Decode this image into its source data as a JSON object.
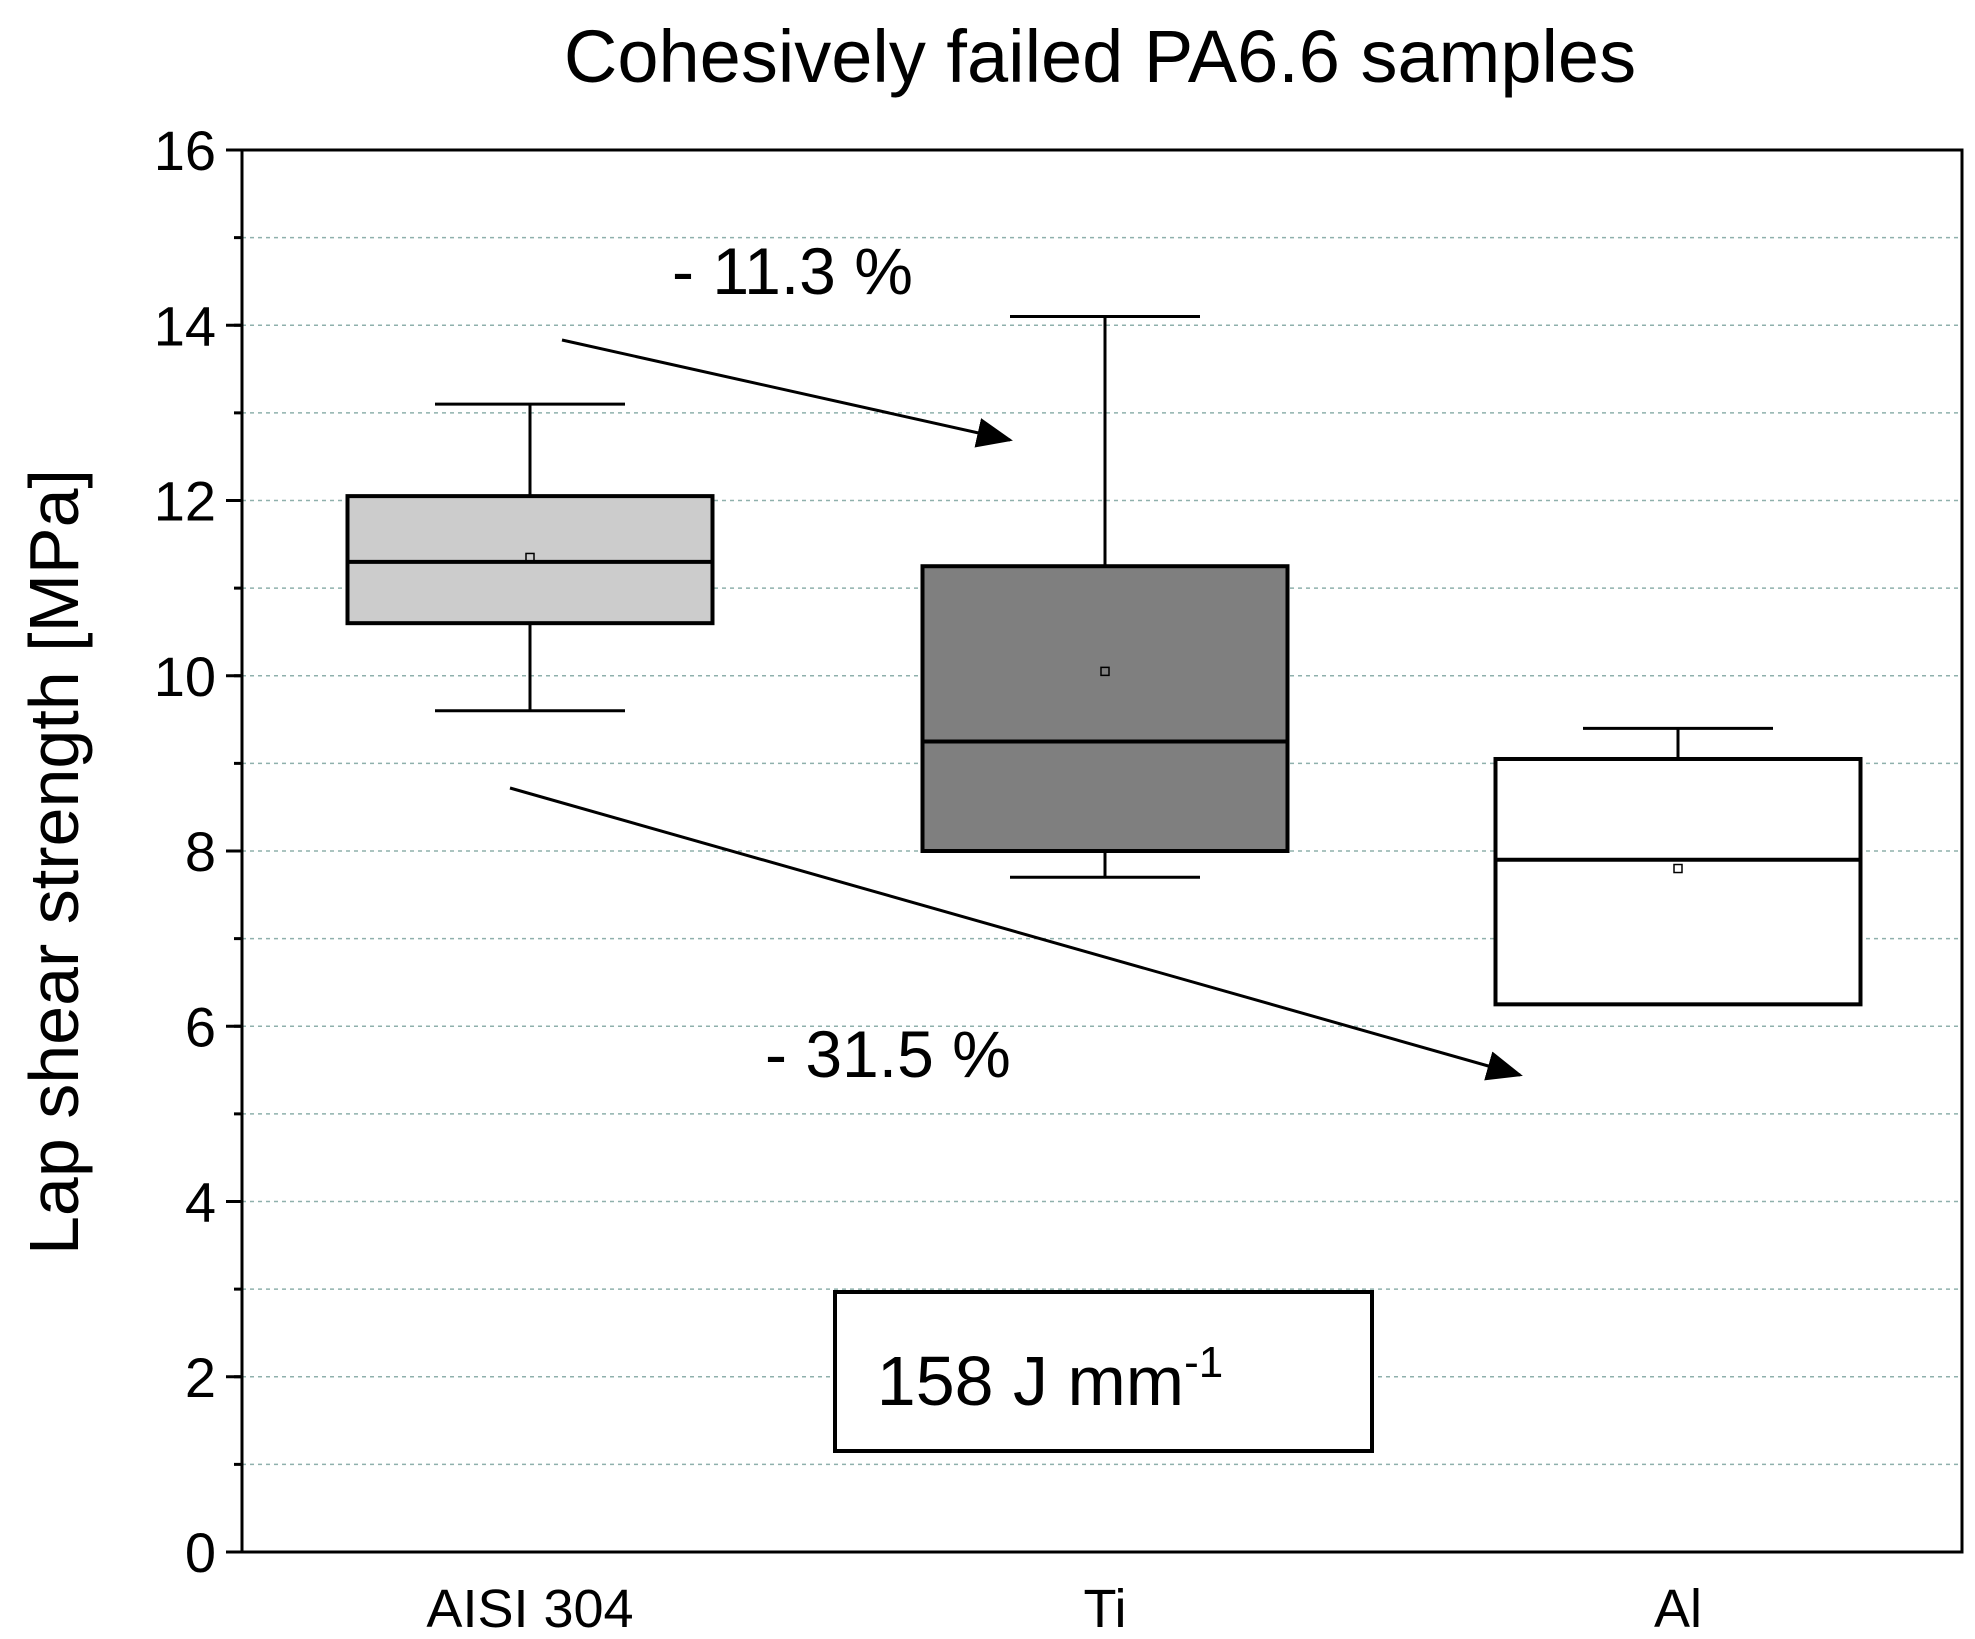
{
  "chart_data": {
    "type": "box",
    "title": "Cohesively failed PA6.6 samples",
    "xlabel": "",
    "ylabel": "Lap shear strength [MPa]",
    "ylim": [
      0,
      16
    ],
    "yticks": [
      0,
      2,
      4,
      6,
      8,
      10,
      12,
      14,
      16
    ],
    "minor_tick_step": 1,
    "grid": true,
    "categories": [
      "AISI 304",
      "Ti",
      "Al"
    ],
    "boxes": [
      {
        "name": "AISI 304",
        "whisker_low": 9.6,
        "q1": 10.6,
        "median": 11.3,
        "q3": 12.05,
        "whisker_high": 13.1,
        "mean": 11.35,
        "color": "#cccccc"
      },
      {
        "name": "Ti",
        "whisker_low": 7.7,
        "q1": 8.0,
        "median": 9.25,
        "q3": 11.25,
        "whisker_high": 14.1,
        "mean": 10.05,
        "color": "#7f7f7f"
      },
      {
        "name": "Al",
        "whisker_low": 6.25,
        "q1": 6.25,
        "median": 7.9,
        "q3": 9.05,
        "whisker_high": 9.4,
        "mean": 7.8,
        "color": "#ffffff"
      }
    ],
    "annotations": [
      {
        "text": "- 11.3 %",
        "from_category": "AISI 304",
        "to_category": "Ti"
      },
      {
        "text": "- 31.5 %",
        "from_category": "AISI 304",
        "to_category": "Al"
      }
    ],
    "label_box": {
      "text": "158 J mm",
      "superscript": "-1"
    }
  }
}
